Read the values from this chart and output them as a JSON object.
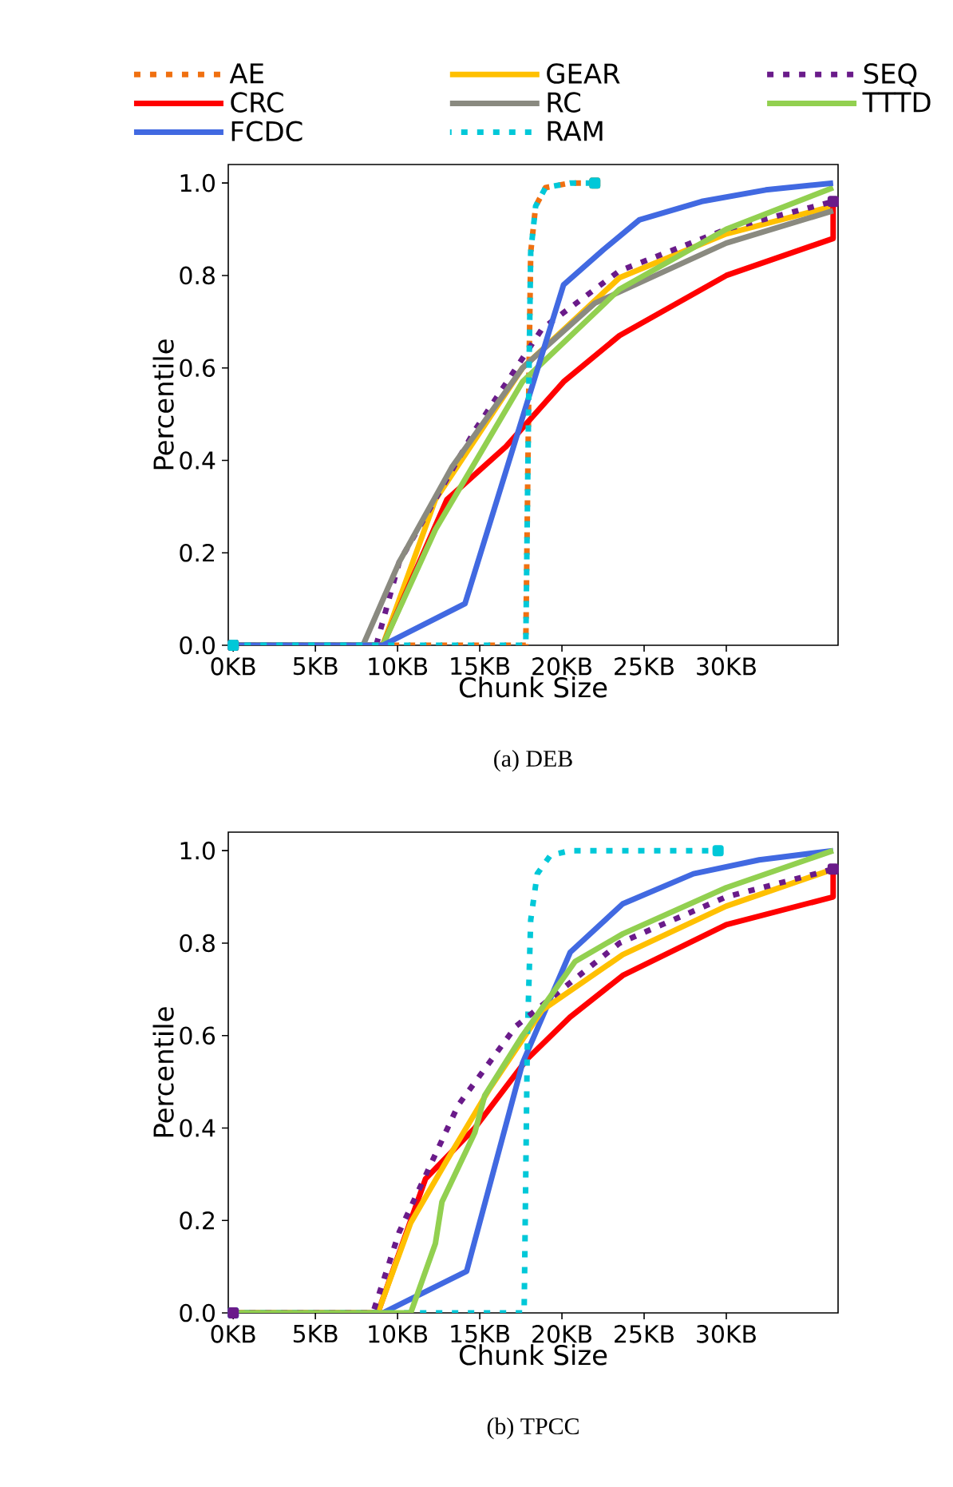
{
  "chart_data": [
    {
      "type": "line",
      "title": "(a) DEB",
      "xlabel": "Chunk Size",
      "ylabel": "Percentile",
      "legend": "top",
      "marker": "none",
      "grid": false,
      "xlim": [
        -0.3,
        36.8
      ],
      "ylim": [
        0,
        1.04
      ],
      "xticks": [
        {
          "value": 0,
          "label": "0KB"
        },
        {
          "value": 5,
          "label": "5KB"
        },
        {
          "value": 10,
          "label": "10KB"
        },
        {
          "value": 15,
          "label": "15KB"
        },
        {
          "value": 20,
          "label": "20KB"
        },
        {
          "value": 25,
          "label": "25KB"
        },
        {
          "value": 30,
          "label": "30KB"
        }
      ],
      "yticks": [
        {
          "value": 0,
          "label": "0.0"
        },
        {
          "value": 0.2,
          "label": "0.2"
        },
        {
          "value": 0.4,
          "label": "0.4"
        },
        {
          "value": 0.6,
          "label": "0.6"
        },
        {
          "value": 0.8,
          "label": "0.8"
        },
        {
          "value": 1,
          "label": "1.0"
        }
      ],
      "series": [
        {
          "name": "AE",
          "color": "#f07010",
          "line_style": "dotted",
          "x": [
            0,
            17.8,
            17.9,
            18.0,
            18.1,
            18.4,
            19.0,
            20.5,
            22.0
          ],
          "values": [
            0,
            0,
            0.3,
            0.6,
            0.85,
            0.95,
            0.99,
            1.0,
            1.0
          ]
        },
        {
          "name": "GEAR",
          "color": "#ffc000",
          "line_style": "solid",
          "x": [
            0,
            9.1,
            12.3,
            17.6,
            23.5,
            30.0,
            36.5
          ],
          "values": [
            0,
            0,
            0.315,
            0.6,
            0.795,
            0.89,
            0.95
          ]
        },
        {
          "name": "SEQ",
          "color": "#6a1b8a",
          "line_style": "dotted",
          "x": [
            0,
            8.7,
            10.1,
            14.7,
            18.8,
            23.5,
            30.0,
            36.5
          ],
          "values": [
            0,
            0,
            0.18,
            0.465,
            0.685,
            0.81,
            0.9,
            0.96
          ]
        },
        {
          "name": "CRC",
          "color": "#ff0000",
          "line_style": "solid",
          "x": [
            0,
            9.1,
            13.0,
            16.6,
            20.1,
            23.5,
            30.0,
            36.5,
            36.5
          ],
          "values": [
            0,
            0,
            0.315,
            0.43,
            0.57,
            0.67,
            0.8,
            0.88,
            0.95
          ]
        },
        {
          "name": "RC",
          "color": "#8a8a80",
          "line_style": "solid",
          "x": [
            0,
            7.9,
            10.1,
            13.3,
            17.6,
            22.0,
            30.0,
            36.5
          ],
          "values": [
            0,
            0,
            0.18,
            0.385,
            0.6,
            0.74,
            0.87,
            0.94
          ]
        },
        {
          "name": "TTTD",
          "color": "#92d050",
          "line_style": "solid",
          "x": [
            0,
            9.1,
            12.3,
            17.6,
            23.5,
            30.0,
            36.5
          ],
          "values": [
            0,
            0,
            0.25,
            0.57,
            0.77,
            0.9,
            0.99
          ]
        },
        {
          "name": "FCDC",
          "color": "#4169e1",
          "line_style": "solid",
          "x": [
            0,
            9.1,
            14.1,
            20.1,
            22.5,
            24.7,
            28.5,
            32.4,
            36.5
          ],
          "values": [
            0,
            0,
            0.09,
            0.78,
            0.855,
            0.92,
            0.96,
            0.985,
            1.0
          ]
        },
        {
          "name": "RAM",
          "color": "#00c8d8",
          "line_style": "dotted",
          "x": [
            0,
            17.8,
            17.9,
            18.0,
            18.1,
            18.4,
            19.0,
            20.5,
            22.0
          ],
          "values": [
            0,
            0,
            0.3,
            0.6,
            0.85,
            0.95,
            0.99,
            1.0,
            1.0
          ]
        }
      ]
    },
    {
      "type": "line",
      "title": "(b) TPCC",
      "xlabel": "Chunk Size",
      "ylabel": "Percentile",
      "legend": false,
      "marker": "none",
      "grid": false,
      "xlim": [
        -0.3,
        36.8
      ],
      "ylim": [
        0,
        1.04
      ],
      "xticks": [
        {
          "value": 0,
          "label": "0KB"
        },
        {
          "value": 5,
          "label": "5KB"
        },
        {
          "value": 10,
          "label": "10KB"
        },
        {
          "value": 15,
          "label": "15KB"
        },
        {
          "value": 20,
          "label": "20KB"
        },
        {
          "value": 25,
          "label": "25KB"
        },
        {
          "value": 30,
          "label": "30KB"
        }
      ],
      "yticks": [
        {
          "value": 0,
          "label": "0.0"
        },
        {
          "value": 0.2,
          "label": "0.2"
        },
        {
          "value": 0.4,
          "label": "0.4"
        },
        {
          "value": 0.6,
          "label": "0.6"
        },
        {
          "value": 0.8,
          "label": "0.8"
        },
        {
          "value": 1,
          "label": "1.0"
        }
      ],
      "series": [
        {
          "color": "#ff0000",
          "line_style": "solid",
          "x": [
            0,
            8.8,
            11.7,
            14.7,
            17.9,
            20.5,
            23.7,
            30.0,
            36.5,
            36.5
          ],
          "values": [
            0,
            0,
            0.29,
            0.4,
            0.55,
            0.64,
            0.73,
            0.84,
            0.9,
            0.95
          ]
        },
        {
          "color": "#4169e1",
          "line_style": "solid",
          "x": [
            0,
            9.1,
            14.2,
            17.6,
            20.5,
            23.7,
            28.0,
            32.0,
            36.5
          ],
          "values": [
            0,
            0,
            0.09,
            0.54,
            0.78,
            0.885,
            0.95,
            0.98,
            1.0
          ]
        },
        {
          "color": "#ffc000",
          "line_style": "solid",
          "x": [
            0,
            8.8,
            10.8,
            13.0,
            15.6,
            18.8,
            23.7,
            30.0,
            36.5
          ],
          "values": [
            0,
            0,
            0.195,
            0.33,
            0.485,
            0.655,
            0.775,
            0.88,
            0.96
          ]
        },
        {
          "color": "#00c8d8",
          "line_style": "dotted",
          "x": [
            0,
            17.7,
            17.8,
            17.9,
            18.1,
            18.5,
            19.3,
            20.5,
            29.5
          ],
          "values": [
            0,
            0,
            0.3,
            0.6,
            0.85,
            0.95,
            0.99,
            1.0,
            1.0
          ]
        },
        {
          "color": "#6a1b8a",
          "line_style": "dotted",
          "x": [
            0,
            8.5,
            10.1,
            13.7,
            17.2,
            23.5,
            30.0,
            36.5
          ],
          "values": [
            0,
            0,
            0.175,
            0.45,
            0.62,
            0.8,
            0.9,
            0.96
          ]
        },
        {
          "color": "#92d050",
          "line_style": "solid",
          "x": [
            0,
            10.8,
            12.3,
            12.7,
            14.7,
            15.3,
            17.6,
            20.8,
            23.7,
            30.0,
            36.5
          ],
          "values": [
            0,
            0,
            0.15,
            0.24,
            0.39,
            0.47,
            0.6,
            0.76,
            0.82,
            0.92,
            1.0
          ]
        }
      ]
    }
  ]
}
